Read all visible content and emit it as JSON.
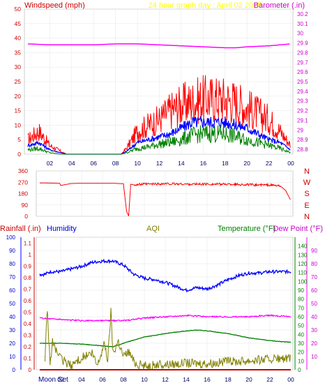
{
  "chart_data": [
    {
      "type": "line",
      "title": "24 hour graph day : April 02 2025",
      "left_axis_label": "Windspeed (mph)",
      "right_axis_label": "Barometer (.in)",
      "left_ylim": [
        0,
        50
      ],
      "left_ticks": [
        "0",
        "5",
        "10",
        "15",
        "20",
        "25",
        "30",
        "35",
        "40",
        "45",
        "50"
      ],
      "right_ylim": [
        28.75,
        30.25
      ],
      "right_ticks": [
        "28.8",
        "28.9",
        "29",
        "29.1",
        "29.2",
        "29.3",
        "29.4",
        "29.5",
        "29.6",
        "29.7",
        "29.8",
        "29.9",
        "30",
        "30.1",
        "30.2"
      ],
      "x_ticks": [
        "02",
        "04",
        "06",
        "08",
        "10",
        "12",
        "14",
        "16",
        "18",
        "20",
        "22",
        "00"
      ],
      "grid": true,
      "colors": {
        "gust": "#ff0000",
        "speed_avg": "#0000ff",
        "speed": "#008000",
        "barometer": "#ff00ff"
      },
      "series": [
        {
          "key": "gust",
          "x": [
            0,
            1,
            2,
            3,
            3.5,
            8.5,
            9,
            10,
            11,
            12,
            13,
            14,
            15,
            16,
            17,
            18,
            19,
            20,
            21,
            22,
            23,
            24
          ],
          "values": [
            5,
            8,
            3,
            1,
            0,
            0,
            2,
            8,
            10,
            12,
            15,
            17,
            18,
            19,
            19,
            19,
            18,
            16,
            14,
            12,
            8,
            3
          ]
        },
        {
          "key": "speed_avg",
          "x": [
            0,
            1,
            2,
            3,
            3.5,
            8.5,
            9,
            10,
            11,
            12,
            13,
            14,
            15,
            16,
            17,
            18,
            19,
            20,
            21,
            22,
            23,
            24
          ],
          "values": [
            3,
            4,
            1.5,
            0.5,
            0,
            0,
            1,
            4,
            5,
            6,
            7,
            9,
            11,
            11,
            11,
            11,
            10,
            9,
            7,
            5,
            4,
            1.5
          ]
        },
        {
          "key": "speed",
          "x": [
            0,
            1,
            2,
            3,
            3.5,
            8.5,
            9,
            10,
            11,
            12,
            13,
            14,
            15,
            16,
            17,
            18,
            19,
            20,
            21,
            22,
            23,
            24
          ],
          "values": [
            1.5,
            2,
            0.5,
            0,
            0,
            0,
            0.5,
            2,
            2.5,
            3.5,
            4,
            5,
            6.5,
            7,
            7,
            7,
            6,
            5,
            4,
            3,
            2,
            0.5
          ]
        },
        {
          "key": "barometer",
          "x": [
            0,
            2,
            4,
            6,
            8,
            10,
            12,
            14,
            16,
            18,
            19,
            20,
            22,
            24
          ],
          "values": [
            29.89,
            29.88,
            29.88,
            29.88,
            29.89,
            29.89,
            29.88,
            29.87,
            29.86,
            29.85,
            29.85,
            29.86,
            29.87,
            29.89
          ]
        }
      ]
    },
    {
      "type": "line",
      "title": "",
      "left_ylim": [
        0,
        360
      ],
      "left_ticks": [
        "0",
        "90",
        "180",
        "270",
        "360"
      ],
      "right_labels": [
        "N",
        "W",
        "S",
        "E",
        "N"
      ],
      "x_ticks": [
        "02",
        "04",
        "06",
        "08",
        "10",
        "12",
        "14",
        "16",
        "18",
        "20",
        "22",
        "00"
      ],
      "colors": {
        "direction": "#ff0000"
      },
      "series": [
        {
          "key": "wind_direction",
          "x": [
            0,
            1.9,
            2,
            3,
            4,
            5,
            6,
            7,
            8,
            8.3,
            8.5,
            8.7,
            9,
            10,
            12,
            14,
            16,
            18,
            20,
            22,
            23,
            23.5,
            24
          ],
          "values": [
            265,
            262,
            245,
            260,
            262,
            262,
            262,
            262,
            258,
            40,
            2,
            255,
            250,
            255,
            258,
            255,
            255,
            255,
            250,
            248,
            240,
            205,
            125
          ]
        }
      ]
    },
    {
      "type": "line",
      "labels": {
        "rainfall": "Rainfall (.in)",
        "humidity": "Humidity",
        "aqi": "AQI",
        "temperature": "Temperature (°F)",
        "dewpoint": "Dew Point (°F)"
      },
      "humidity_ticks": [
        "0",
        "10",
        "20",
        "30",
        "40",
        "50",
        "60",
        "70",
        "80",
        "90",
        "100"
      ],
      "rainfall_ticks": [
        "0",
        "0.1",
        "0.2",
        "0.3",
        "0.4",
        "0.5",
        "0.6",
        "0.7",
        "0.8",
        "0.9",
        "1",
        "1.1"
      ],
      "temperature_ticks": [
        "0",
        "10",
        "20",
        "30",
        "40",
        "50",
        "60",
        "70",
        "80",
        "90",
        "100",
        "110",
        "120",
        "130",
        "140"
      ],
      "dewpoint_ticks": [
        "10",
        "20",
        "30",
        "40",
        "50",
        "60",
        "70",
        "80",
        "90"
      ],
      "x_ticks": [
        "02",
        "04",
        "06",
        "08",
        "10",
        "12",
        "14",
        "16",
        "18",
        "20",
        "22",
        "00"
      ],
      "bottom_label": "Moon Set",
      "colors": {
        "humidity": "#0000ff",
        "temperature": "#008000",
        "dewpoint": "#ff00ff",
        "aqi": "#808000",
        "rainfall": "#cc0000"
      },
      "series": [
        {
          "key": "humidity",
          "x": [
            0,
            0.5,
            1,
            2,
            3,
            4,
            5,
            6,
            7,
            8,
            9,
            10,
            11,
            12,
            13,
            14,
            15,
            16,
            17,
            18,
            19,
            20,
            21,
            22,
            23,
            24
          ],
          "values": [
            72,
            72,
            74,
            74,
            76,
            78,
            81,
            82,
            82,
            79,
            72,
            69,
            68,
            66,
            63,
            60,
            62,
            61,
            64,
            68,
            71,
            73,
            73,
            74,
            74,
            74
          ]
        },
        {
          "key": "temperature",
          "x": [
            0,
            2,
            4,
            6,
            7,
            8,
            10,
            12,
            14,
            15,
            16,
            18,
            20,
            22,
            24
          ],
          "values": [
            30,
            30,
            29,
            27,
            26,
            30,
            37,
            41,
            44,
            45,
            44,
            41,
            36,
            33,
            31
          ]
        },
        {
          "key": "dewpoint",
          "x": [
            0,
            2,
            4,
            6,
            8,
            10,
            12,
            14,
            16,
            18,
            20,
            22,
            24
          ],
          "values": [
            39,
            38,
            37,
            37,
            37,
            39,
            40,
            41,
            40,
            40,
            40,
            41,
            40
          ]
        },
        {
          "key": "aqi",
          "x": [
            0.5,
            0.7,
            1,
            1.2,
            2,
            3,
            4,
            5,
            5.5,
            6.2,
            6.5,
            6.8,
            7,
            7.5,
            8,
            8.5,
            9,
            9.5,
            10,
            12,
            14,
            16,
            18,
            20,
            22,
            24
          ],
          "values": [
            3,
            47,
            3,
            21,
            8,
            3,
            9,
            12,
            3,
            20,
            7,
            44,
            12,
            22,
            10,
            14,
            6,
            4,
            3,
            4,
            5,
            5,
            6,
            7,
            8,
            8
          ]
        },
        {
          "key": "rainfall",
          "x": [
            0,
            24
          ],
          "values": [
            0,
            0
          ]
        }
      ]
    }
  ]
}
